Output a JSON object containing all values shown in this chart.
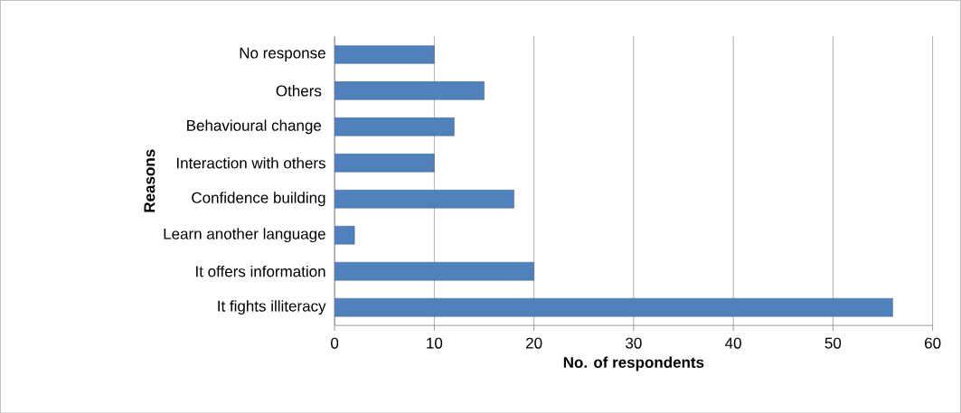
{
  "chart_data": {
    "type": "bar",
    "orientation": "horizontal",
    "xlabel": "No. of respondents",
    "ylabel": "Reasons",
    "categories": [
      "No response",
      "Others ",
      "Behavioural change ",
      "Interaction with others",
      "Confidence building",
      "Learn another language",
      "It offers information",
      "It fights illiteracy"
    ],
    "values": [
      10,
      15,
      12,
      10,
      18,
      2,
      20,
      56
    ],
    "color": "#4f81bd",
    "xlim": [
      0,
      60
    ],
    "xticks": [
      0,
      10,
      20,
      30,
      40,
      50,
      60
    ],
    "grid": "x"
  }
}
